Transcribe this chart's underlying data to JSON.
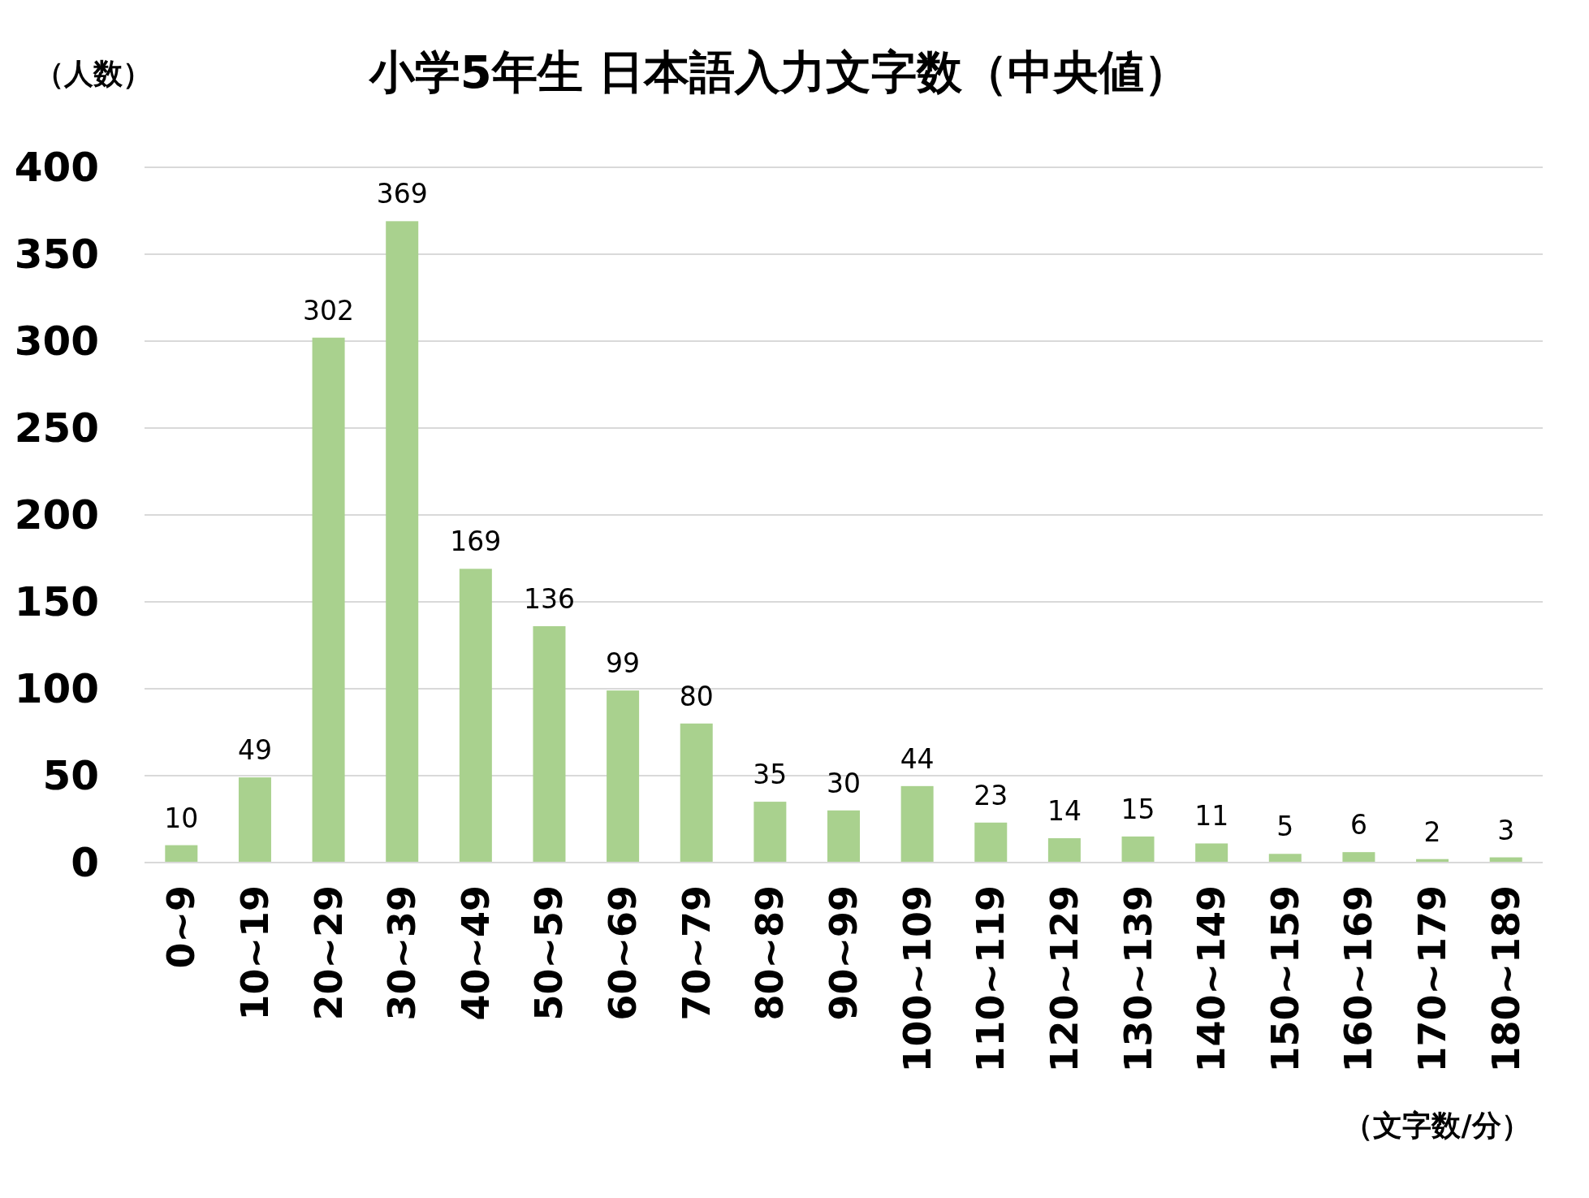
{
  "chart_data": {
    "type": "bar",
    "title": "小学5年生 日本語入力文字数（中央値）",
    "ylabel": "（人数）",
    "xlabel": "（文字数/分）",
    "categories": [
      "0~9",
      "10~19",
      "20~29",
      "30~39",
      "40~49",
      "50~59",
      "60~69",
      "70~79",
      "80~89",
      "90~99",
      "100~109",
      "110~119",
      "120~129",
      "130~139",
      "140~149",
      "150~159",
      "160~169",
      "170~179",
      "180~189"
    ],
    "values": [
      10,
      49,
      302,
      369,
      169,
      136,
      99,
      80,
      35,
      30,
      44,
      23,
      14,
      15,
      11,
      5,
      6,
      2,
      3
    ],
    "color": "#a9d18e",
    "ylim": [
      0,
      400
    ],
    "yticks": [
      0,
      50,
      100,
      150,
      200,
      250,
      300,
      350,
      400
    ],
    "grid": "y",
    "data_labels": true
  }
}
